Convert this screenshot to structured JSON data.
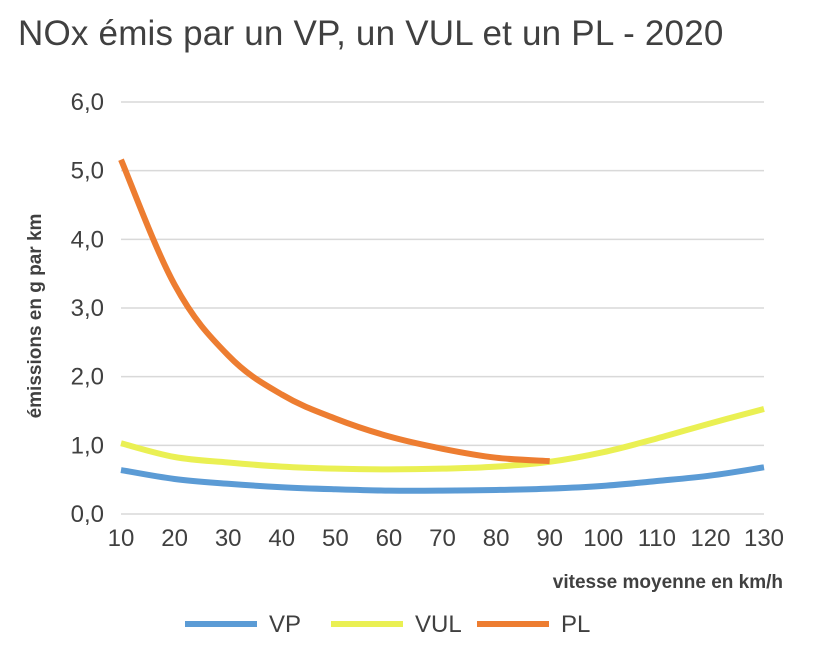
{
  "chart_data": {
    "type": "line",
    "title": "NOx émis par un VP, un VUL et un PL - 2020",
    "xlabel": "vitesse moyenne en km/h",
    "ylabel": "émissions en g par km",
    "x": [
      10,
      20,
      30,
      40,
      50,
      60,
      70,
      80,
      90,
      100,
      110,
      120,
      130
    ],
    "x_tick_labels": [
      "10",
      "20",
      "30",
      "40",
      "50",
      "60",
      "70",
      "80",
      "90",
      "100",
      "110",
      "120",
      "130"
    ],
    "y_tick_labels": [
      "0,0",
      "1,0",
      "2,0",
      "3,0",
      "4,0",
      "5,0",
      "6,0"
    ],
    "ylim": [
      0,
      6
    ],
    "grid": true,
    "legend_position": "bottom",
    "series": [
      {
        "name": "VP",
        "color": "#5b9bd5",
        "x": [
          10,
          20,
          30,
          40,
          50,
          60,
          70,
          80,
          90,
          100,
          110,
          120,
          130
        ],
        "values": [
          0.64,
          0.51,
          0.44,
          0.39,
          0.36,
          0.34,
          0.34,
          0.35,
          0.37,
          0.41,
          0.48,
          0.56,
          0.68
        ]
      },
      {
        "name": "VUL",
        "color": "#eaf053",
        "x": [
          10,
          20,
          30,
          40,
          50,
          60,
          70,
          80,
          90,
          100,
          110,
          120,
          130
        ],
        "values": [
          1.03,
          0.83,
          0.75,
          0.69,
          0.66,
          0.65,
          0.66,
          0.69,
          0.76,
          0.9,
          1.1,
          1.32,
          1.53
        ]
      },
      {
        "name": "PL",
        "color": "#ed7d31",
        "x": [
          10,
          20,
          30,
          40,
          50,
          60,
          70,
          80,
          90
        ],
        "values": [
          5.16,
          3.34,
          2.31,
          1.74,
          1.39,
          1.13,
          0.95,
          0.82,
          0.77
        ]
      }
    ]
  }
}
